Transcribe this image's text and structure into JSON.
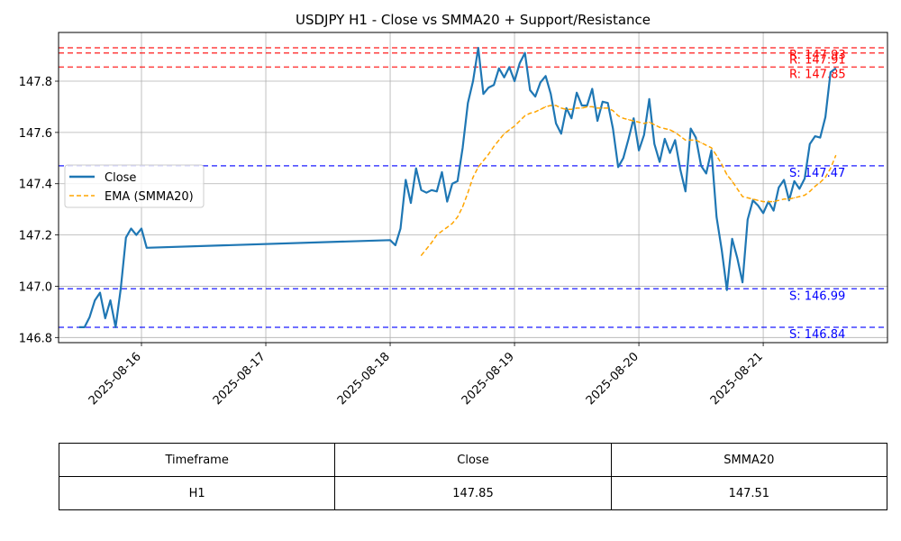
{
  "chart_data": {
    "type": "line",
    "title": "USDJPY H1 - Close vs SMMA20 + Support/Resistance",
    "xlabel": "",
    "ylabel": "",
    "x_tick_labels": [
      "2025-08-16",
      "2025-08-17",
      "2025-08-18",
      "2025-08-19",
      "2025-08-20",
      "2025-08-21"
    ],
    "y_ticks": [
      146.8,
      147.0,
      147.2,
      147.4,
      147.6,
      147.8
    ],
    "y_tick_labels": [
      "146.8",
      "147.0",
      "147.2",
      "147.4",
      "147.6",
      "147.8"
    ],
    "xlim": [
      "2025-08-15 08:00",
      "2025-08-21 23:59"
    ],
    "ylim": [
      146.78,
      147.99
    ],
    "grid": true,
    "legend": {
      "location": "center-left",
      "entries": [
        "Close",
        "EMA (SMMA20)"
      ]
    },
    "series": [
      {
        "name": "Close",
        "color": "#1f77b4",
        "style": "solid",
        "points": [
          [
            "2025-08-15 12:00",
            146.84
          ],
          [
            "2025-08-15 13:00",
            146.84
          ],
          [
            "2025-08-15 14:00",
            146.88
          ],
          [
            "2025-08-15 15:00",
            146.945
          ],
          [
            "2025-08-15 16:00",
            146.975
          ],
          [
            "2025-08-15 17:00",
            146.875
          ],
          [
            "2025-08-15 18:00",
            146.945
          ],
          [
            "2025-08-15 19:00",
            146.84
          ],
          [
            "2025-08-15 20:00",
            146.99
          ],
          [
            "2025-08-15 21:00",
            147.19
          ],
          [
            "2025-08-15 22:00",
            147.225
          ],
          [
            "2025-08-15 23:00",
            147.2
          ],
          [
            "2025-08-16 00:00",
            147.225
          ],
          [
            "2025-08-16 01:00",
            147.15
          ],
          [
            "2025-08-18 00:00",
            147.18
          ],
          [
            "2025-08-18 01:00",
            147.16
          ],
          [
            "2025-08-18 02:00",
            147.225
          ],
          [
            "2025-08-18 03:00",
            147.415
          ],
          [
            "2025-08-18 04:00",
            147.325
          ],
          [
            "2025-08-18 05:00",
            147.46
          ],
          [
            "2025-08-18 06:00",
            147.375
          ],
          [
            "2025-08-18 07:00",
            147.365
          ],
          [
            "2025-08-18 08:00",
            147.375
          ],
          [
            "2025-08-18 09:00",
            147.37
          ],
          [
            "2025-08-18 10:00",
            147.445
          ],
          [
            "2025-08-18 11:00",
            147.33
          ],
          [
            "2025-08-18 12:00",
            147.4
          ],
          [
            "2025-08-18 13:00",
            147.41
          ],
          [
            "2025-08-18 14:00",
            147.54
          ],
          [
            "2025-08-18 15:00",
            147.715
          ],
          [
            "2025-08-18 16:00",
            147.8
          ],
          [
            "2025-08-18 17:00",
            147.93
          ],
          [
            "2025-08-18 18:00",
            147.75
          ],
          [
            "2025-08-18 19:00",
            147.775
          ],
          [
            "2025-08-18 20:00",
            147.785
          ],
          [
            "2025-08-18 21:00",
            147.85
          ],
          [
            "2025-08-18 22:00",
            147.815
          ],
          [
            "2025-08-18 23:00",
            147.855
          ],
          [
            "2025-08-19 00:00",
            147.8
          ],
          [
            "2025-08-19 01:00",
            147.87
          ],
          [
            "2025-08-19 02:00",
            147.91
          ],
          [
            "2025-08-19 03:00",
            147.765
          ],
          [
            "2025-08-19 04:00",
            147.74
          ],
          [
            "2025-08-19 05:00",
            147.795
          ],
          [
            "2025-08-19 06:00",
            147.82
          ],
          [
            "2025-08-19 07:00",
            147.75
          ],
          [
            "2025-08-19 08:00",
            147.635
          ],
          [
            "2025-08-19 09:00",
            147.595
          ],
          [
            "2025-08-19 10:00",
            147.695
          ],
          [
            "2025-08-19 11:00",
            147.655
          ],
          [
            "2025-08-19 12:00",
            147.755
          ],
          [
            "2025-08-19 13:00",
            147.705
          ],
          [
            "2025-08-19 14:00",
            147.705
          ],
          [
            "2025-08-19 15:00",
            147.77
          ],
          [
            "2025-08-19 16:00",
            147.645
          ],
          [
            "2025-08-19 17:00",
            147.72
          ],
          [
            "2025-08-19 18:00",
            147.715
          ],
          [
            "2025-08-19 19:00",
            147.615
          ],
          [
            "2025-08-19 20:00",
            147.465
          ],
          [
            "2025-08-19 21:00",
            147.5
          ],
          [
            "2025-08-19 22:00",
            147.575
          ],
          [
            "2025-08-19 23:00",
            147.655
          ],
          [
            "2025-08-20 00:00",
            147.53
          ],
          [
            "2025-08-20 01:00",
            147.59
          ],
          [
            "2025-08-20 02:00",
            147.73
          ],
          [
            "2025-08-20 03:00",
            147.555
          ],
          [
            "2025-08-20 04:00",
            147.485
          ],
          [
            "2025-08-20 05:00",
            147.575
          ],
          [
            "2025-08-20 06:00",
            147.52
          ],
          [
            "2025-08-20 07:00",
            147.57
          ],
          [
            "2025-08-20 08:00",
            147.455
          ],
          [
            "2025-08-20 09:00",
            147.37
          ],
          [
            "2025-08-20 10:00",
            147.615
          ],
          [
            "2025-08-20 11:00",
            147.58
          ],
          [
            "2025-08-20 12:00",
            147.47
          ],
          [
            "2025-08-20 13:00",
            147.44
          ],
          [
            "2025-08-20 14:00",
            147.53
          ],
          [
            "2025-08-20 15:00",
            147.27
          ],
          [
            "2025-08-20 16:00",
            147.14
          ],
          [
            "2025-08-20 17:00",
            146.985
          ],
          [
            "2025-08-20 18:00",
            147.185
          ],
          [
            "2025-08-20 19:00",
            147.11
          ],
          [
            "2025-08-20 20:00",
            147.015
          ],
          [
            "2025-08-20 21:00",
            147.26
          ],
          [
            "2025-08-20 22:00",
            147.335
          ],
          [
            "2025-08-20 23:00",
            147.315
          ],
          [
            "2025-08-21 00:00",
            147.285
          ],
          [
            "2025-08-21 01:00",
            147.33
          ],
          [
            "2025-08-21 02:00",
            147.295
          ],
          [
            "2025-08-21 03:00",
            147.385
          ],
          [
            "2025-08-21 04:00",
            147.415
          ],
          [
            "2025-08-21 05:00",
            147.335
          ],
          [
            "2025-08-21 06:00",
            147.41
          ],
          [
            "2025-08-21 07:00",
            147.38
          ],
          [
            "2025-08-21 08:00",
            147.42
          ],
          [
            "2025-08-21 09:00",
            147.555
          ],
          [
            "2025-08-21 10:00",
            147.585
          ],
          [
            "2025-08-21 11:00",
            147.58
          ],
          [
            "2025-08-21 12:00",
            147.66
          ],
          [
            "2025-08-21 13:00",
            147.835
          ],
          [
            "2025-08-21 14:00",
            147.85
          ]
        ]
      },
      {
        "name": "EMA (SMMA20)",
        "color": "#ffa500",
        "style": "dashed",
        "points": [
          [
            "2025-08-18 06:00",
            147.12
          ],
          [
            "2025-08-18 07:00",
            147.145
          ],
          [
            "2025-08-18 08:00",
            147.17
          ],
          [
            "2025-08-18 09:00",
            147.2
          ],
          [
            "2025-08-18 10:00",
            147.215
          ],
          [
            "2025-08-18 11:00",
            147.23
          ],
          [
            "2025-08-18 12:00",
            147.245
          ],
          [
            "2025-08-18 13:00",
            147.27
          ],
          [
            "2025-08-18 14:00",
            147.31
          ],
          [
            "2025-08-18 15:00",
            147.365
          ],
          [
            "2025-08-18 16:00",
            147.425
          ],
          [
            "2025-08-18 17:00",
            147.465
          ],
          [
            "2025-08-18 18:00",
            147.49
          ],
          [
            "2025-08-18 19:00",
            147.515
          ],
          [
            "2025-08-18 20:00",
            147.545
          ],
          [
            "2025-08-18 21:00",
            147.57
          ],
          [
            "2025-08-18 22:00",
            147.595
          ],
          [
            "2025-08-18 23:00",
            147.61
          ],
          [
            "2025-08-19 00:00",
            147.625
          ],
          [
            "2025-08-19 01:00",
            147.645
          ],
          [
            "2025-08-19 02:00",
            147.665
          ],
          [
            "2025-08-19 03:00",
            147.675
          ],
          [
            "2025-08-19 04:00",
            147.68
          ],
          [
            "2025-08-19 05:00",
            147.69
          ],
          [
            "2025-08-19 06:00",
            147.7
          ],
          [
            "2025-08-19 07:00",
            147.705
          ],
          [
            "2025-08-19 08:00",
            147.705
          ],
          [
            "2025-08-19 09:00",
            147.695
          ],
          [
            "2025-08-19 10:00",
            147.69
          ],
          [
            "2025-08-19 11:00",
            147.69
          ],
          [
            "2025-08-19 12:00",
            147.695
          ],
          [
            "2025-08-19 13:00",
            147.695
          ],
          [
            "2025-08-19 14:00",
            147.7
          ],
          [
            "2025-08-19 15:00",
            147.7
          ],
          [
            "2025-08-19 16:00",
            147.695
          ],
          [
            "2025-08-19 17:00",
            147.695
          ],
          [
            "2025-08-19 18:00",
            147.695
          ],
          [
            "2025-08-19 19:00",
            147.685
          ],
          [
            "2025-08-19 20:00",
            147.665
          ],
          [
            "2025-08-19 21:00",
            147.655
          ],
          [
            "2025-08-19 22:00",
            147.65
          ],
          [
            "2025-08-19 23:00",
            147.645
          ],
          [
            "2025-08-20 00:00",
            147.64
          ],
          [
            "2025-08-20 01:00",
            147.635
          ],
          [
            "2025-08-20 02:00",
            147.64
          ],
          [
            "2025-08-20 03:00",
            147.63
          ],
          [
            "2025-08-20 04:00",
            147.62
          ],
          [
            "2025-08-20 05:00",
            147.615
          ],
          [
            "2025-08-20 06:00",
            147.61
          ],
          [
            "2025-08-20 07:00",
            147.6
          ],
          [
            "2025-08-20 08:00",
            147.585
          ],
          [
            "2025-08-20 09:00",
            147.57
          ],
          [
            "2025-08-20 10:00",
            147.57
          ],
          [
            "2025-08-20 11:00",
            147.57
          ],
          [
            "2025-08-20 12:00",
            147.56
          ],
          [
            "2025-08-20 13:00",
            147.55
          ],
          [
            "2025-08-20 14:00",
            147.54
          ],
          [
            "2025-08-20 15:00",
            147.51
          ],
          [
            "2025-08-20 16:00",
            147.475
          ],
          [
            "2025-08-20 17:00",
            147.435
          ],
          [
            "2025-08-20 18:00",
            147.41
          ],
          [
            "2025-08-20 19:00",
            147.38
          ],
          [
            "2025-08-20 20:00",
            147.35
          ],
          [
            "2025-08-20 21:00",
            147.345
          ],
          [
            "2025-08-20 22:00",
            147.34
          ],
          [
            "2025-08-20 23:00",
            147.335
          ],
          [
            "2025-08-21 00:00",
            147.33
          ],
          [
            "2025-08-21 01:00",
            147.33
          ],
          [
            "2025-08-21 02:00",
            147.33
          ],
          [
            "2025-08-21 03:00",
            147.335
          ],
          [
            "2025-08-21 04:00",
            147.34
          ],
          [
            "2025-08-21 05:00",
            147.34
          ],
          [
            "2025-08-21 06:00",
            147.345
          ],
          [
            "2025-08-21 07:00",
            147.35
          ],
          [
            "2025-08-21 08:00",
            147.355
          ],
          [
            "2025-08-21 09:00",
            147.37
          ],
          [
            "2025-08-21 10:00",
            147.39
          ],
          [
            "2025-08-21 11:00",
            147.405
          ],
          [
            "2025-08-21 12:00",
            147.425
          ],
          [
            "2025-08-21 13:00",
            147.46
          ],
          [
            "2025-08-21 14:00",
            147.51
          ]
        ]
      }
    ],
    "levels": [
      {
        "label": "R: 147.93",
        "value": 147.93,
        "color": "#ff0000",
        "kind": "resistance"
      },
      {
        "label": "R: 147.91",
        "value": 147.91,
        "color": "#ff0000",
        "kind": "resistance"
      },
      {
        "label": "R: 147.85",
        "value": 147.855,
        "color": "#ff0000",
        "kind": "resistance"
      },
      {
        "label": "S: 147.47",
        "value": 147.47,
        "color": "#0000ff",
        "kind": "support"
      },
      {
        "label": "S: 146.99",
        "value": 146.99,
        "color": "#0000ff",
        "kind": "support"
      },
      {
        "label": "S: 146.84",
        "value": 146.84,
        "color": "#0000ff",
        "kind": "support"
      }
    ]
  },
  "table": {
    "headers": [
      "Timeframe",
      "Close",
      "SMMA20"
    ],
    "rows": [
      [
        "H1",
        "147.85",
        "147.51"
      ]
    ]
  }
}
